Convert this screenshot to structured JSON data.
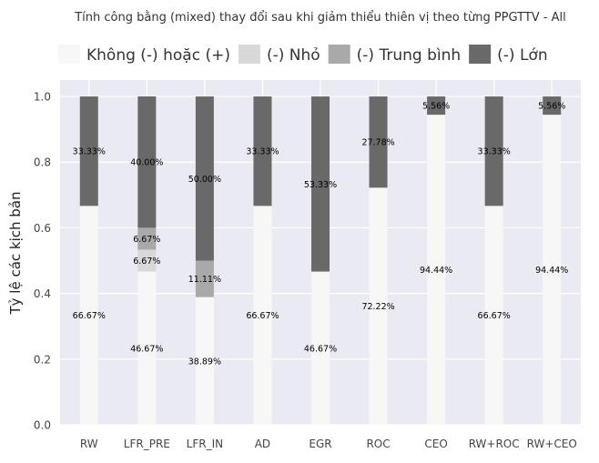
{
  "chart_data": {
    "type": "bar",
    "stacked": true,
    "title": "Tính công bằng (mixed) thay đổi sau khi giảm thiểu thiên vị theo từng PPGTTV - All",
    "xlabel": "",
    "ylabel": "Tỷ lệ các kịch bản",
    "ylim": [
      0,
      1.05
    ],
    "yticks": [
      "0.0",
      "0.2",
      "0.4",
      "0.6",
      "0.8",
      "1.0"
    ],
    "grid": true,
    "legend_position": "top",
    "categories": [
      "RW",
      "LFR_PRE",
      "LFR_IN",
      "AD",
      "EGR",
      "ROC",
      "CEO",
      "RW+ROC",
      "RW+CEO"
    ],
    "series": [
      {
        "name": "Không (-) hoặc (+)",
        "color": "#f7f7f7",
        "values": [
          0.6667,
          0.4667,
          0.3889,
          0.6667,
          0.4667,
          0.7222,
          0.9444,
          0.6667,
          0.9444
        ],
        "labels": [
          "66.67%",
          "46.67%",
          "38.89%",
          "66.67%",
          "46.67%",
          "72.22%",
          "94.44%",
          "66.67%",
          "94.44%"
        ]
      },
      {
        "name": "(-) Nhỏ",
        "color": "#d8d8d8",
        "values": [
          0,
          0.0667,
          0,
          0,
          0,
          0,
          0,
          0,
          0
        ],
        "labels": [
          "",
          "6.67%",
          "",
          "",
          "",
          "",
          "",
          "",
          ""
        ]
      },
      {
        "name": "(-) Trung bình",
        "color": "#a9a9a9",
        "values": [
          0,
          0.0667,
          0.1111,
          0,
          0,
          0,
          0,
          0,
          0
        ],
        "labels": [
          "",
          "6.67%",
          "11.11%",
          "",
          "",
          "",
          "",
          "",
          ""
        ]
      },
      {
        "name": "(-) Lớn",
        "color": "#696969",
        "values": [
          0.3333,
          0.4,
          0.5,
          0.3333,
          0.5333,
          0.2778,
          0.0556,
          0.3333,
          0.0556
        ],
        "labels": [
          "33.33%",
          "40.00%",
          "50.00%",
          "33.33%",
          "53.33%",
          "27.78%",
          "5.56%",
          "33.33%",
          "5.56%"
        ]
      }
    ]
  }
}
